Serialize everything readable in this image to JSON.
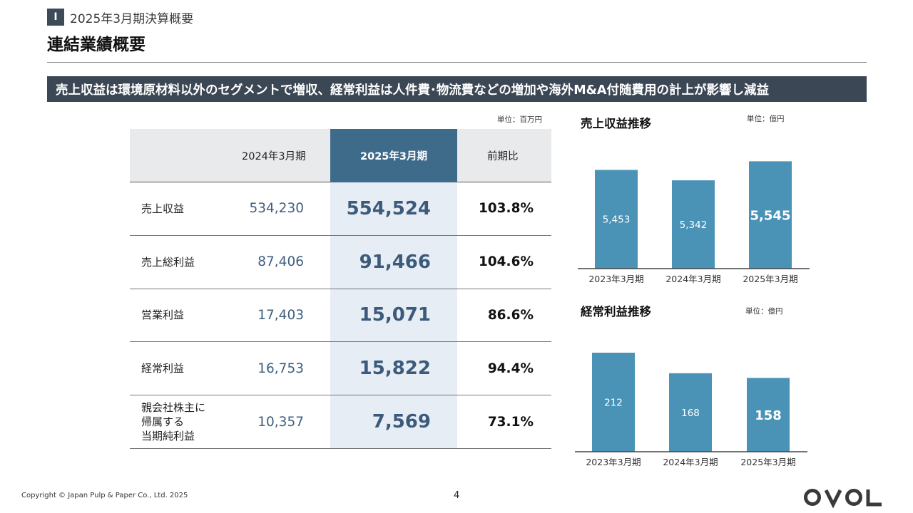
{
  "section": {
    "badge": "I",
    "title": "2025年3月期決算概要"
  },
  "page_title": "連結業績概要",
  "headline": "売上収益は環境原材料以外のセグメントで増収、経常利益は人件費･物流費などの増加や海外M&A付随費用の計上が影響し減益",
  "table": {
    "unit": "単位：百万円",
    "headers": {
      "label": "",
      "prev": "2024年3月期",
      "curr": "2025年3月期",
      "ratio": "前期比"
    },
    "rows": [
      {
        "label": "売上収益",
        "prev": "534,230",
        "curr": "554,524",
        "ratio": "103.8%"
      },
      {
        "label": "売上総利益",
        "prev": "87,406",
        "curr": "91,466",
        "ratio": "104.6%"
      },
      {
        "label": "営業利益",
        "prev": "17,403",
        "curr": "15,071",
        "ratio": "86.6%"
      },
      {
        "label": "経常利益",
        "prev": "16,753",
        "curr": "15,822",
        "ratio": "94.4%"
      },
      {
        "label": "親会社株主に\n帰属する\n当期純利益",
        "prev": "10,357",
        "curr": "7,569",
        "ratio": "73.1%"
      }
    ]
  },
  "chart_data": [
    {
      "type": "bar",
      "title": "売上収益推移",
      "unit": "単位：億円",
      "categories": [
        "2023年3月期",
        "2024年3月期",
        "2025年3月期"
      ],
      "values": [
        5453,
        5342,
        5545
      ],
      "labels": [
        "5,453",
        "5,342",
        "5,545"
      ],
      "ylim": [
        4400,
        5700
      ],
      "color": "#4a93b6"
    },
    {
      "type": "bar",
      "title": "経常利益推移",
      "unit": "単位：億円",
      "categories": [
        "2023年3月期",
        "2024年3月期",
        "2025年3月期"
      ],
      "values": [
        212,
        168,
        158
      ],
      "labels": [
        "212",
        "168",
        "158"
      ],
      "ylim": [
        0,
        212
      ],
      "color": "#4a93b6"
    }
  ],
  "footer": {
    "copyright": "Copyright © Japan Pulp & Paper Co., Ltd. 2025",
    "page": "4",
    "logo": "OVOL"
  }
}
